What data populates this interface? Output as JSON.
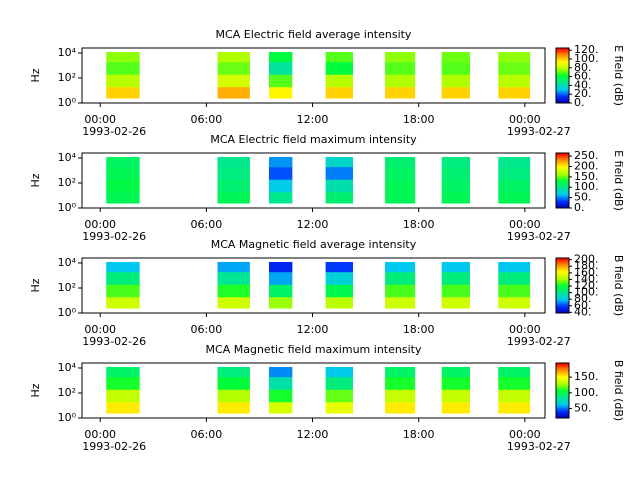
{
  "chart_data": [
    {
      "type": "spectrogram",
      "title": "MCA  Electric field average intensity",
      "y_label": "Hz",
      "colorbar_label": "E field (dB)",
      "xlim": [
        -1.03,
        25.14
      ],
      "xticks": [
        {
          "value": 0,
          "label": "00:00"
        },
        {
          "value": 6,
          "label": "06:00"
        },
        {
          "value": 12,
          "label": "12:00"
        },
        {
          "value": 18,
          "label": "18:00"
        },
        {
          "value": 24,
          "label": "00:00"
        }
      ],
      "date_labels": [
        {
          "value": 0,
          "label": "1993-02-26"
        },
        {
          "value": 24,
          "label": "1993-02-27"
        }
      ],
      "ylim": [
        1,
        25000
      ],
      "log_y": true,
      "yticks": [
        {
          "value": 1,
          "label": "10⁰"
        },
        {
          "value": 100,
          "label": "10²"
        },
        {
          "value": 10000,
          "label": "10⁴"
        }
      ],
      "x_start": [
        0.34,
        6.63,
        9.54,
        12.74,
        16.1,
        19.3,
        22.5
      ],
      "x_end": [
        2.23,
        8.46,
        10.86,
        14.29,
        17.8,
        20.9,
        24.3
      ],
      "bands": [
        2.5,
        20,
        200,
        2000,
        12000
      ],
      "values": [
        [
          100,
          80,
          70,
          75
        ],
        [
          105,
          85,
          72,
          78
        ],
        [
          95,
          70,
          45,
          60
        ],
        [
          100,
          80,
          60,
          70
        ],
        [
          100,
          78,
          70,
          75
        ],
        [
          100,
          78,
          70,
          72
        ],
        [
          100,
          80,
          72,
          75
        ]
      ],
      "clim": [
        0,
        125
      ],
      "cticks": [
        {
          "value": 0,
          "label": "0."
        },
        {
          "value": 20,
          "label": "20."
        },
        {
          "value": 40,
          "label": "40."
        },
        {
          "value": 60,
          "label": "60."
        },
        {
          "value": 80,
          "label": "80."
        },
        {
          "value": 100,
          "label": "100."
        },
        {
          "value": 120,
          "label": "120."
        }
      ],
      "colormap": [
        "#0000b0",
        "#0030ff",
        "#00c8f0",
        "#00e890",
        "#00ff30",
        "#b0ff00",
        "#ffff00",
        "#ff9000",
        "#ff0000"
      ]
    },
    {
      "type": "spectrogram",
      "title": "MCA  Electric field maximum intensity",
      "y_label": "Hz",
      "colorbar_label": "E field (dB)",
      "xlim": [
        -1.03,
        25.14
      ],
      "xticks": [
        {
          "value": 0,
          "label": "00:00"
        },
        {
          "value": 6,
          "label": "06:00"
        },
        {
          "value": 12,
          "label": "12:00"
        },
        {
          "value": 18,
          "label": "18:00"
        },
        {
          "value": 24,
          "label": "00:00"
        }
      ],
      "date_labels": [
        {
          "value": 0,
          "label": "1993-02-26"
        },
        {
          "value": 24,
          "label": "1993-02-27"
        }
      ],
      "ylim": [
        1,
        25000
      ],
      "log_y": true,
      "yticks": [
        {
          "value": 1,
          "label": "10⁰"
        },
        {
          "value": 100,
          "label": "10²"
        },
        {
          "value": 10000,
          "label": "10⁴"
        }
      ],
      "x_start": [
        0.34,
        6.63,
        9.54,
        12.74,
        16.1,
        19.3,
        22.5
      ],
      "x_end": [
        2.23,
        8.46,
        10.86,
        14.29,
        17.8,
        20.9,
        24.3
      ],
      "bands": [
        2.5,
        20,
        200,
        2000,
        12000
      ],
      "values": [
        [
          120,
          125,
          120,
          115
        ],
        [
          120,
          110,
          105,
          100
        ],
        [
          100,
          70,
          40,
          55
        ],
        [
          110,
          90,
          50,
          80
        ],
        [
          120,
          120,
          115,
          110
        ],
        [
          120,
          115,
          110,
          105
        ],
        [
          120,
          115,
          105,
          100
        ]
      ],
      "clim": [
        0,
        265
      ],
      "cticks": [
        {
          "value": 0,
          "label": "0."
        },
        {
          "value": 50,
          "label": "50."
        },
        {
          "value": 100,
          "label": "100."
        },
        {
          "value": 150,
          "label": "150."
        },
        {
          "value": 200,
          "label": "200."
        },
        {
          "value": 250,
          "label": "250."
        }
      ],
      "colormap": [
        "#0000b0",
        "#0030ff",
        "#00c8f0",
        "#00e890",
        "#00ff30",
        "#b0ff00",
        "#ffff00",
        "#ff9000",
        "#ff0000"
      ]
    },
    {
      "type": "spectrogram",
      "title": "MCA  Magnetic field average intensity",
      "y_label": "Hz",
      "colorbar_label": "B field (dB)",
      "xlim": [
        -1.03,
        25.14
      ],
      "xticks": [
        {
          "value": 0,
          "label": "00:00"
        },
        {
          "value": 6,
          "label": "06:00"
        },
        {
          "value": 12,
          "label": "12:00"
        },
        {
          "value": 18,
          "label": "18:00"
        },
        {
          "value": 24,
          "label": "00:00"
        }
      ],
      "date_labels": [
        {
          "value": 0,
          "label": "1993-02-26"
        },
        {
          "value": 24,
          "label": "1993-02-27"
        }
      ],
      "ylim": [
        1,
        25000
      ],
      "log_y": true,
      "yticks": [
        {
          "value": 1,
          "label": "10⁰"
        },
        {
          "value": 100,
          "label": "10²"
        },
        {
          "value": 10000,
          "label": "10⁴"
        }
      ],
      "x_start": [
        0.34,
        6.63,
        9.54,
        12.74,
        16.1,
        19.3,
        22.5
      ],
      "x_end": [
        2.23,
        8.46,
        10.86,
        14.29,
        17.8,
        20.9,
        24.3
      ],
      "bands": [
        2.5,
        20,
        200,
        2000,
        12000
      ],
      "values": [
        [
          150,
          130,
          105,
          80
        ],
        [
          150,
          125,
          100,
          75
        ],
        [
          140,
          110,
          75,
          55
        ],
        [
          145,
          115,
          85,
          60
        ],
        [
          150,
          130,
          105,
          80
        ],
        [
          150,
          130,
          105,
          80
        ],
        [
          150,
          130,
          105,
          80
        ]
      ],
      "clim": [
        38,
        205
      ],
      "cticks": [
        {
          "value": 40,
          "label": "40."
        },
        {
          "value": 60,
          "label": "60."
        },
        {
          "value": 80,
          "label": "80."
        },
        {
          "value": 100,
          "label": "100."
        },
        {
          "value": 120,
          "label": "120."
        },
        {
          "value": 140,
          "label": "140."
        },
        {
          "value": 160,
          "label": "160."
        },
        {
          "value": 180,
          "label": "180."
        },
        {
          "value": 200,
          "label": "200."
        }
      ],
      "colormap": [
        "#0000b0",
        "#0030ff",
        "#00c8f0",
        "#00e890",
        "#00ff30",
        "#b0ff00",
        "#ffff00",
        "#ff9000",
        "#ff0000"
      ]
    },
    {
      "type": "spectrogram",
      "title": "MCA  Magnetic field maximum intensity",
      "y_label": "Hz",
      "colorbar_label": "B field (dB)",
      "xlim": [
        -1.03,
        25.14
      ],
      "xticks": [
        {
          "value": 0,
          "label": "00:00"
        },
        {
          "value": 6,
          "label": "06:00"
        },
        {
          "value": 12,
          "label": "12:00"
        },
        {
          "value": 18,
          "label": "18:00"
        },
        {
          "value": 24,
          "label": "00:00"
        }
      ],
      "date_labels": [
        {
          "value": 0,
          "label": "1993-02-26"
        },
        {
          "value": 24,
          "label": "1993-02-27"
        }
      ],
      "ylim": [
        1,
        25000
      ],
      "log_y": true,
      "yticks": [
        {
          "value": 1,
          "label": "10⁰"
        },
        {
          "value": 100,
          "label": "10²"
        },
        {
          "value": 10000,
          "label": "10⁴"
        }
      ],
      "x_start": [
        0.34,
        6.63,
        9.54,
        12.74,
        16.1,
        19.3,
        22.5
      ],
      "x_end": [
        2.23,
        8.46,
        10.86,
        14.29,
        17.8,
        20.9,
        24.3
      ],
      "bands": [
        2.5,
        20,
        200,
        2000,
        12000
      ],
      "values": [
        [
          155,
          135,
          110,
          95
        ],
        [
          155,
          130,
          105,
          90
        ],
        [
          140,
          110,
          80,
          55
        ],
        [
          145,
          120,
          90,
          65
        ],
        [
          155,
          135,
          110,
          95
        ],
        [
          155,
          135,
          110,
          95
        ],
        [
          155,
          135,
          110,
          95
        ]
      ],
      "clim": [
        20,
        195
      ],
      "cticks": [
        {
          "value": 50,
          "label": "50."
        },
        {
          "value": 100,
          "label": "100."
        },
        {
          "value": 150,
          "label": "150."
        }
      ],
      "colormap": [
        "#0000b0",
        "#0030ff",
        "#00c8f0",
        "#00e890",
        "#00ff30",
        "#b0ff00",
        "#ffff00",
        "#ff9000",
        "#ff0000"
      ]
    }
  ]
}
